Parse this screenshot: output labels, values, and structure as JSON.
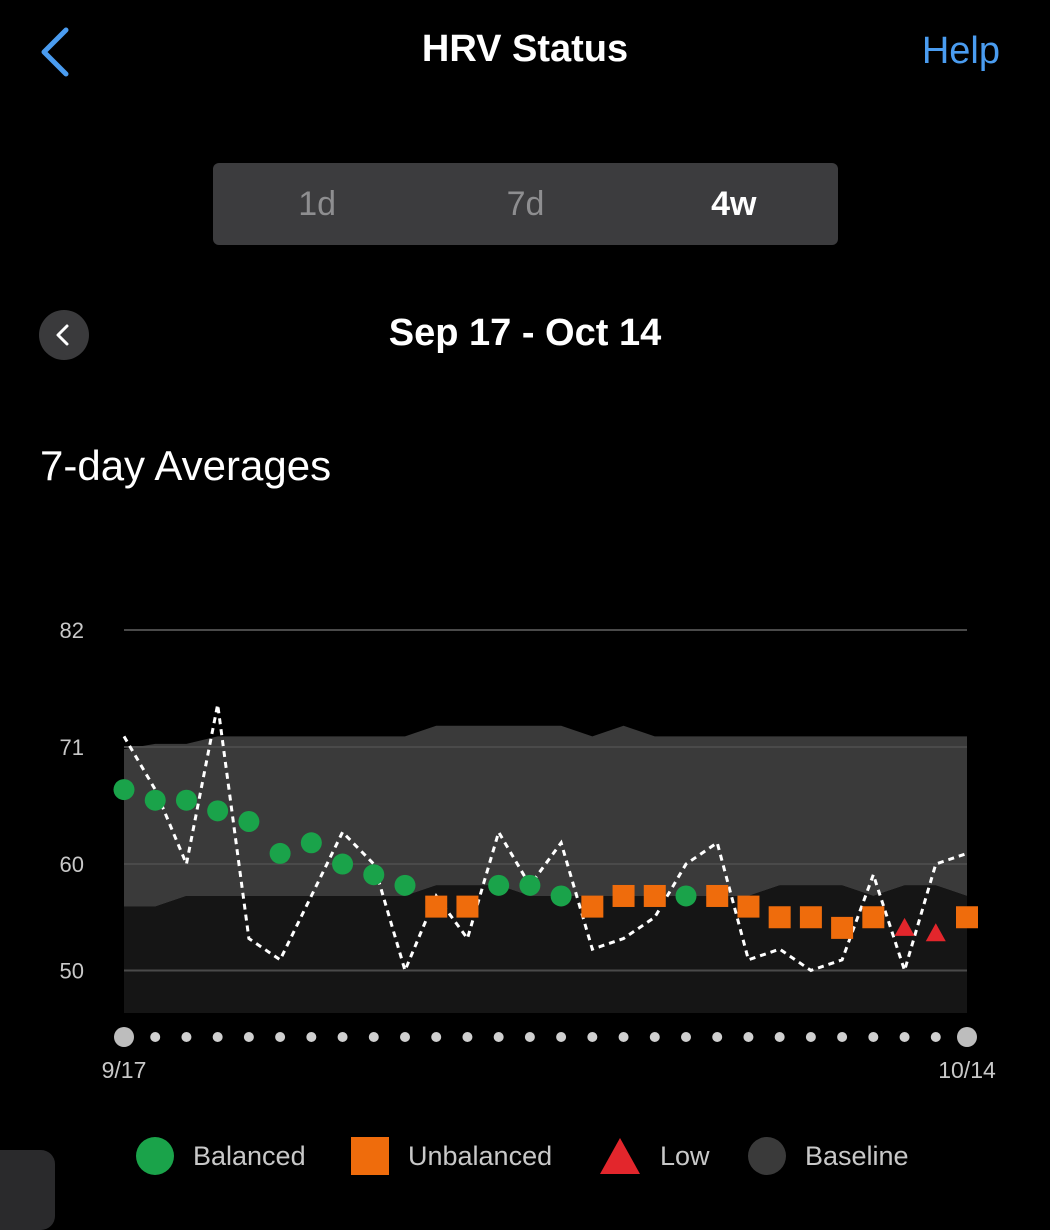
{
  "header": {
    "back_icon": "chevron-left-icon",
    "title": "HRV Status",
    "help_label": "Help"
  },
  "tabs": [
    {
      "label": "1d",
      "active": false
    },
    {
      "label": "7d",
      "active": false
    },
    {
      "label": "4w",
      "active": true
    }
  ],
  "date_nav": {
    "prev_icon": "chevron-left-icon",
    "range": "Sep 17 - Oct 14"
  },
  "section_title": "7-day Averages",
  "colors": {
    "balanced": "#1aa34a",
    "unbalanced": "#ef6c0c",
    "low": "#e3262c",
    "baseline": "#3a3a3a",
    "lower_band": "#151515",
    "accent": "#4a9cf0"
  },
  "chart_data": {
    "type": "scatter",
    "title": "7-day Averages",
    "y_ticks": [
      82,
      71,
      60,
      50
    ],
    "ylim": [
      46,
      82
    ],
    "x_labels": {
      "start": "9/17",
      "end": "10/14"
    },
    "days": 28,
    "grid": "horizontal",
    "legend_position": "bottom",
    "series": [
      {
        "name": "Balanced",
        "marker": "circle",
        "color": "#1aa34a",
        "x": [
          0,
          1,
          2,
          3,
          4,
          5,
          6,
          7,
          8,
          9,
          12,
          13,
          14,
          18
        ],
        "y": [
          67.0,
          66.0,
          66.0,
          65.0,
          64.0,
          61.0,
          62.0,
          60.0,
          59.0,
          58.0,
          58.0,
          58.0,
          57.0,
          57.0
        ]
      },
      {
        "name": "Unbalanced",
        "marker": "square",
        "color": "#ef6c0c",
        "x": [
          10,
          11,
          15,
          16,
          17,
          19,
          20,
          21,
          22,
          23,
          24,
          27
        ],
        "y": [
          56.0,
          56.0,
          56.0,
          57.0,
          57.0,
          57.0,
          56.0,
          55.0,
          55.0,
          54.0,
          55.0,
          55.0
        ]
      },
      {
        "name": "Low",
        "marker": "triangle",
        "color": "#e3262c",
        "x": [
          25,
          26
        ],
        "y": [
          54.0,
          53.5
        ]
      },
      {
        "name": "Baseline",
        "type": "band",
        "x": [
          0,
          1,
          2,
          3,
          4,
          5,
          6,
          7,
          8,
          9,
          10,
          11,
          12,
          13,
          14,
          15,
          16,
          17,
          18,
          19,
          20,
          21,
          22,
          23,
          24,
          25,
          26,
          27
        ],
        "upper": [
          70.8,
          71.3,
          71.3,
          72.0,
          72.0,
          72.0,
          72.0,
          72.0,
          72.0,
          72.0,
          73.0,
          73.0,
          73.0,
          73.0,
          73.0,
          72.0,
          73.0,
          72.0,
          72.0,
          72.0,
          72.0,
          72.0,
          72.0,
          72.0,
          72.0,
          72.0,
          72.0,
          72.0
        ],
        "lower": [
          56.0,
          56.0,
          57.0,
          57.0,
          57.0,
          57.0,
          57.0,
          57.0,
          57.0,
          57.0,
          58.0,
          58.0,
          58.0,
          57.0,
          57.0,
          57.0,
          57.0,
          57.0,
          57.0,
          57.0,
          57.0,
          58.0,
          58.0,
          58.0,
          57.0,
          58.0,
          58.0,
          57.0
        ]
      },
      {
        "name": "Daily HRV",
        "type": "dashed-line",
        "x": [
          0,
          1,
          2,
          3,
          4,
          5,
          6,
          7,
          8,
          9,
          10,
          11,
          12,
          13,
          14,
          15,
          16,
          17,
          18,
          19,
          20,
          21,
          22,
          23,
          24,
          25,
          26,
          27
        ],
        "y": [
          72.0,
          67.0,
          60.0,
          75.0,
          53.0,
          51.0,
          57.0,
          63.0,
          60.0,
          50.0,
          57.0,
          53.0,
          63.0,
          58.0,
          62.0,
          52.0,
          53.0,
          55.0,
          60.0,
          62.0,
          51.0,
          52.0,
          50.0,
          51.0,
          59.0,
          50.0,
          60.0,
          61.0
        ]
      }
    ]
  },
  "legend": [
    {
      "label": "Balanced",
      "symbol": "circle",
      "color": "#1aa34a"
    },
    {
      "label": "Unbalanced",
      "symbol": "square",
      "color": "#ef6c0c"
    },
    {
      "label": "Low",
      "symbol": "triangle",
      "color": "#e3262c"
    },
    {
      "label": "Baseline",
      "symbol": "circle",
      "color": "#3a3a3a"
    }
  ]
}
